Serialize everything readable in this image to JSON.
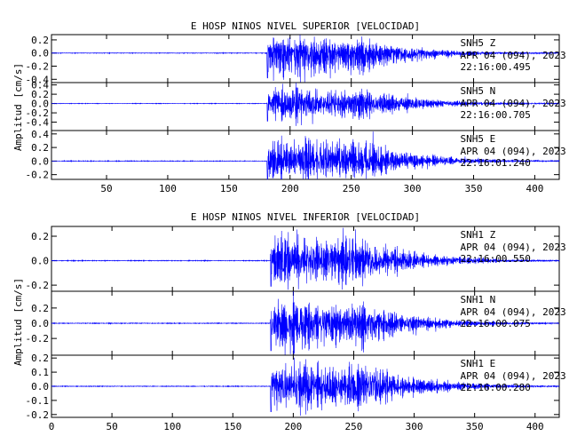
{
  "chart_data": [
    {
      "type": "line",
      "title": "E HOSP NINOS NIVEL SUPERIOR [VELOCIDAD]",
      "ylabel": "Amplitud [cm/s]",
      "xlabel": "",
      "x_ticks": [
        50,
        100,
        150,
        200,
        250,
        300,
        350,
        400
      ],
      "x_tick_labels": [
        "50",
        "100",
        "150",
        "200",
        "250",
        "300",
        "350",
        "400"
      ],
      "xlim": [
        5,
        420
      ],
      "line_color": "#0000ff",
      "traces": [
        {
          "id": "top-z",
          "name": "SNH5   Z",
          "date": "APR 04 (094), 2023",
          "time": "22:16:00.495",
          "ylim": [
            -0.45,
            0.28
          ],
          "y_ticks": [
            0.2,
            0.0,
            -0.2,
            -0.4
          ],
          "y_tick_labels": [
            "0.2",
            "0.0",
            "-0.2",
            "-0.4"
          ],
          "arrival_s": 181,
          "peak_amplitude": 0.24,
          "min_amplitude": -0.4,
          "seed": 11
        },
        {
          "id": "top-n",
          "name": "SNH5   N",
          "date": "APR 04 (094), 2023",
          "time": "22:16:00.705",
          "ylim": [
            -0.58,
            0.45
          ],
          "y_ticks": [
            0.4,
            0.2,
            0.0,
            -0.2,
            -0.4
          ],
          "y_tick_labels": [
            "0.4",
            "0.2",
            "0.0",
            "-0.2",
            "-0.4"
          ],
          "arrival_s": 181,
          "peak_amplitude": 0.4,
          "min_amplitude": -0.4,
          "seed": 23
        },
        {
          "id": "top-e",
          "name": "SNH5   E",
          "date": "APR 04 (094), 2023",
          "time": "22:16:01.240",
          "ylim": [
            -0.27,
            0.45
          ],
          "y_ticks": [
            0.4,
            0.2,
            0.0,
            -0.2
          ],
          "y_tick_labels": [
            "0.4",
            "0.2",
            "0.0",
            "-0.2"
          ],
          "arrival_s": 181,
          "peak_amplitude": 0.38,
          "min_amplitude": -0.3,
          "seed": 37
        }
      ]
    },
    {
      "type": "line",
      "title": "E HOSP NINOS NIVEL INFERIOR [VELOCIDAD]",
      "ylabel": "Amplitud [cm/s]",
      "xlabel": "",
      "x_ticks": [
        0,
        50,
        100,
        150,
        200,
        250,
        300,
        350,
        400
      ],
      "x_tick_labels": [
        "0",
        "50",
        "100",
        "150",
        "200",
        "250",
        "300",
        "350",
        "400"
      ],
      "xlim": [
        0,
        420
      ],
      "line_color": "#0000ff",
      "traces": [
        {
          "id": "bot-z",
          "name": "SNH1   Z",
          "date": "APR 04 (094), 2023",
          "time": "22:16:00.550",
          "ylim": [
            -0.25,
            0.28
          ],
          "y_ticks": [
            0.2,
            0.0,
            -0.2
          ],
          "y_tick_labels": [
            "0.2",
            "0.0",
            "-0.2"
          ],
          "arrival_s": 181,
          "peak_amplitude": 0.22,
          "min_amplitude": -0.22,
          "seed": 51
        },
        {
          "id": "bot-n",
          "name": "SNH1   N",
          "date": "APR 04 (094), 2023",
          "time": "22:16:00.075",
          "ylim": [
            -0.42,
            0.42
          ],
          "y_ticks": [
            0.2,
            0.0,
            -0.2
          ],
          "y_tick_labels": [
            "0.2",
            "0.0",
            "-0.2"
          ],
          "arrival_s": 181,
          "peak_amplitude": 0.3,
          "min_amplitude": -0.38,
          "seed": 67
        },
        {
          "id": "bot-e",
          "name": "SNH1   E",
          "date": "APR 04 (094), 2023",
          "time": "22:16:00.280",
          "ylim": [
            -0.22,
            0.22
          ],
          "y_ticks": [
            0.2,
            0.1,
            0.0,
            -0.1,
            -0.2
          ],
          "y_tick_labels": [
            "0.2",
            "0.1",
            "0.0",
            "-0.1",
            "-0.2"
          ],
          "arrival_s": 181,
          "peak_amplitude": 0.19,
          "min_amplitude": -0.19,
          "seed": 83
        }
      ]
    }
  ]
}
